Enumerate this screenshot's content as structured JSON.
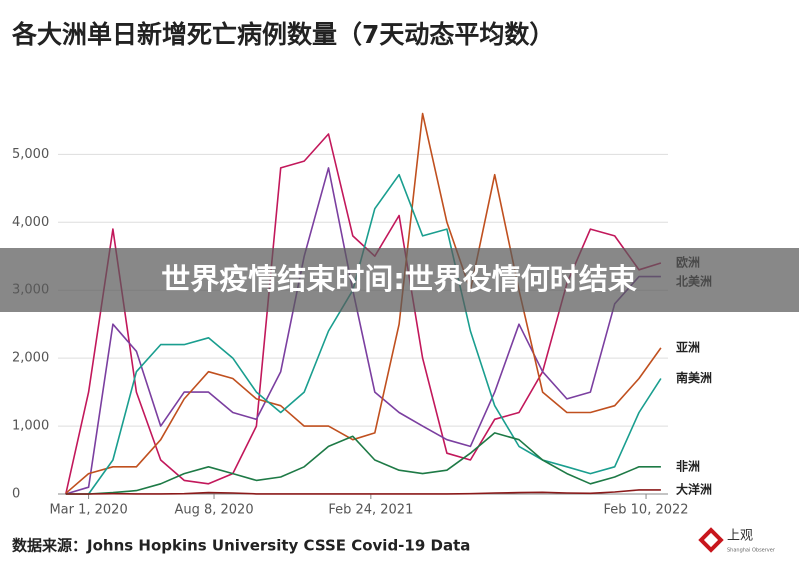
{
  "chart_data": {
    "type": "line",
    "title": "各大洲单日新增死亡病例数量（7天动态平均数）",
    "x": [
      "2020-02-01",
      "2020-03-01",
      "2020-04-01",
      "2020-05-01",
      "2020-06-01",
      "2020-07-01",
      "2020-08-01",
      "2020-09-01",
      "2020-10-01",
      "2020-11-01",
      "2020-12-01",
      "2021-01-01",
      "2021-02-01",
      "2021-03-01",
      "2021-04-01",
      "2021-05-01",
      "2021-06-01",
      "2021-07-01",
      "2021-08-01",
      "2021-09-01",
      "2021-10-01",
      "2021-11-01",
      "2021-12-01",
      "2022-01-01",
      "2022-02-01",
      "2022-03-01"
    ],
    "series": [
      {
        "name": "欧洲",
        "color": "#c2185b",
        "values": [
          0,
          1500,
          3900,
          1500,
          500,
          200,
          150,
          300,
          1000,
          4800,
          4900,
          5300,
          3800,
          3500,
          4100,
          2000,
          600,
          500,
          1100,
          1200,
          1800,
          3100,
          3900,
          3800,
          3300,
          3400
        ]
      },
      {
        "name": "北美洲",
        "color": "#7b3fa0",
        "values": [
          0,
          100,
          2500,
          2100,
          1000,
          1500,
          1500,
          1200,
          1100,
          1800,
          3500,
          4800,
          3000,
          1500,
          1200,
          1000,
          800,
          700,
          1500,
          2500,
          1800,
          1400,
          1500,
          2800,
          3200,
          3200
        ]
      },
      {
        "name": "亚洲",
        "color": "#c0501f",
        "values": [
          10,
          300,
          400,
          400,
          800,
          1400,
          1800,
          1700,
          1400,
          1300,
          1000,
          1000,
          800,
          900,
          2500,
          5600,
          4000,
          3000,
          4700,
          3000,
          1500,
          1200,
          1200,
          1300,
          1700,
          2150
        ]
      },
      {
        "name": "南美洲",
        "color": "#1a9e8f",
        "values": [
          0,
          0,
          500,
          1800,
          2200,
          2200,
          2300,
          2000,
          1500,
          1200,
          1500,
          2400,
          3000,
          4200,
          4700,
          3800,
          3900,
          2400,
          1300,
          700,
          500,
          400,
          300,
          400,
          1200,
          1700
        ]
      },
      {
        "name": "非洲",
        "color": "#1e7a46",
        "values": [
          0,
          0,
          20,
          50,
          150,
          300,
          400,
          300,
          200,
          250,
          400,
          700,
          850,
          500,
          350,
          300,
          350,
          600,
          900,
          800,
          500,
          300,
          150,
          250,
          400,
          400
        ]
      },
      {
        "name": "大洋洲",
        "color": "#8b1a1a",
        "values": [
          0,
          0,
          5,
          2,
          1,
          5,
          20,
          15,
          2,
          1,
          1,
          2,
          1,
          1,
          1,
          1,
          1,
          5,
          15,
          20,
          25,
          15,
          10,
          30,
          60,
          60
        ]
      }
    ],
    "xlim": [
      "2020-01-22",
      "2022-03-10"
    ],
    "xticks": [
      {
        "value": "2020-03-01",
        "label": "Mar 1, 2020"
      },
      {
        "value": "2020-08-08",
        "label": "Aug 8, 2020"
      },
      {
        "value": "2021-02-24",
        "label": "Feb 24, 2021"
      },
      {
        "value": "2022-02-10",
        "label": "Feb 10, 2022"
      }
    ],
    "ylim": [
      0,
      5800
    ],
    "yticks": [
      0,
      {
        "value": 1000,
        "label": "1,000"
      },
      {
        "value": 2000,
        "label": "2,000"
      },
      {
        "value": 3000,
        "label": "3,000"
      },
      {
        "value": 4000,
        "label": "4,000"
      },
      {
        "value": 5000,
        "label": "5,000"
      }
    ],
    "grid": true
  },
  "banner": "世界疫情结束时间:世界役情何时结束",
  "source": "数据来源：Johns Hopkins University CSSE Covid-19 Data",
  "logo": {
    "name": "上观",
    "subtitle": "Shanghai Observer"
  }
}
